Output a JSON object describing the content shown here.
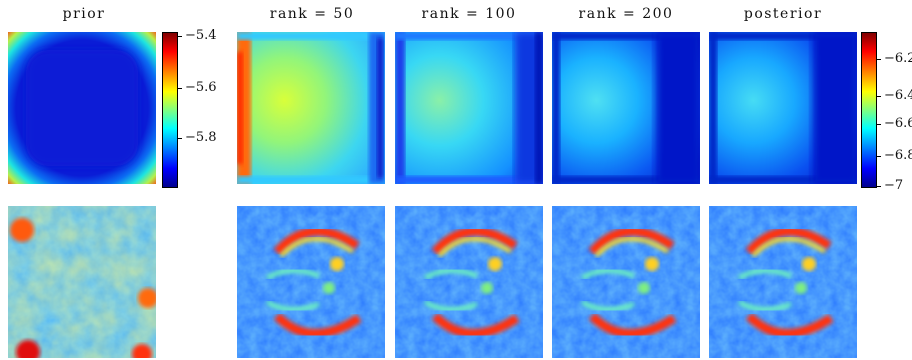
{
  "columns": [
    {
      "key": "prior",
      "title": "prior"
    },
    {
      "key": "rank50",
      "title": "rank = 50"
    },
    {
      "key": "rank100",
      "title": "rank = 100"
    },
    {
      "key": "rank200",
      "title": "rank = 200"
    },
    {
      "key": "posterior",
      "title": "posterior"
    }
  ],
  "colorbar_left": {
    "ticks": [
      "−5.4",
      "−5.6",
      "−5.8"
    ]
  },
  "colorbar_right": {
    "ticks": [
      "−6.2",
      "−6.4",
      "−6.6",
      "−6.8",
      "−7"
    ]
  },
  "colormap": "jet"
}
